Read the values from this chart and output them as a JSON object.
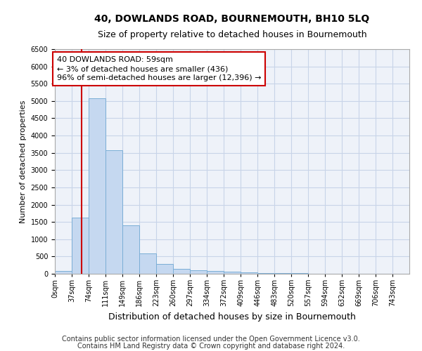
{
  "title": "40, DOWLANDS ROAD, BOURNEMOUTH, BH10 5LQ",
  "subtitle": "Size of property relative to detached houses in Bournemouth",
  "xlabel": "Distribution of detached houses by size in Bournemouth",
  "ylabel": "Number of detached properties",
  "bar_color": "#c5d8f0",
  "bar_edge_color": "#7baed6",
  "bin_labels": [
    "0sqm",
    "37sqm",
    "74sqm",
    "111sqm",
    "149sqm",
    "186sqm",
    "223sqm",
    "260sqm",
    "297sqm",
    "334sqm",
    "372sqm",
    "409sqm",
    "446sqm",
    "483sqm",
    "520sqm",
    "557sqm",
    "594sqm",
    "632sqm",
    "669sqm",
    "706sqm",
    "743sqm"
  ],
  "bin_edges": [
    0,
    37,
    74,
    111,
    149,
    186,
    223,
    260,
    297,
    334,
    372,
    409,
    446,
    483,
    520,
    557,
    594,
    632,
    669,
    706,
    743
  ],
  "bar_heights": [
    75,
    1620,
    5080,
    3570,
    1400,
    590,
    290,
    150,
    110,
    75,
    55,
    50,
    30,
    20,
    15,
    10,
    8,
    5,
    5,
    3,
    3
  ],
  "ylim": [
    0,
    6500
  ],
  "yticks": [
    0,
    500,
    1000,
    1500,
    2000,
    2500,
    3000,
    3500,
    4000,
    4500,
    5000,
    5500,
    6000,
    6500
  ],
  "property_line_x": 59,
  "annotation_line1": "40 DOWLANDS ROAD: 59sqm",
  "annotation_line2": "← 3% of detached houses are smaller (436)",
  "annotation_line3": "96% of semi-detached houses are larger (12,396) →",
  "annotation_box_color": "#ffffff",
  "annotation_border_color": "#cc0000",
  "vline_color": "#cc0000",
  "grid_color": "#c8d4e8",
  "background_color": "#eef2f9",
  "footer_line1": "Contains HM Land Registry data © Crown copyright and database right 2024.",
  "footer_line2": "Contains public sector information licensed under the Open Government Licence v3.0.",
  "title_fontsize": 10,
  "subtitle_fontsize": 9,
  "xlabel_fontsize": 9,
  "ylabel_fontsize": 8,
  "footer_fontsize": 7,
  "annotation_fontsize": 8,
  "tick_fontsize": 7
}
